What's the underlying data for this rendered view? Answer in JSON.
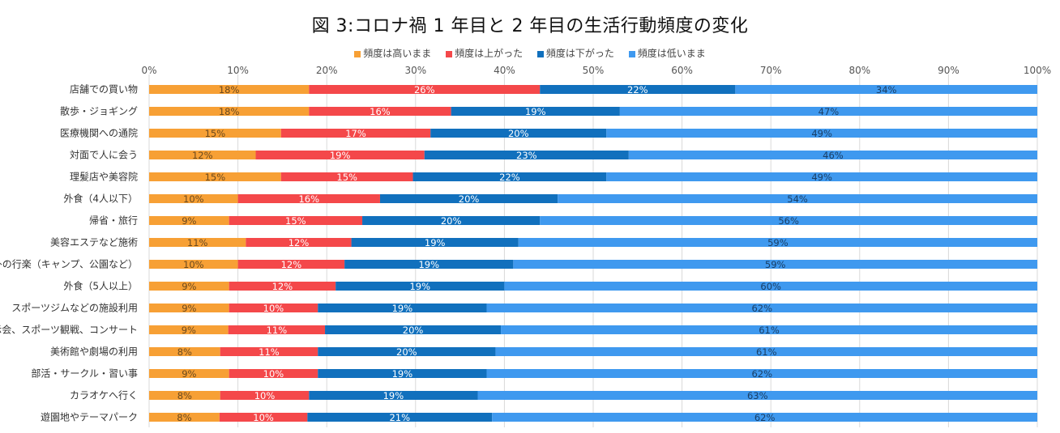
{
  "chart_data": {
    "type": "bar",
    "orientation": "horizontal-stacked-100",
    "title": "図 3:コロナ禍 1 年目と 2 年目の生活行動頻度の変化",
    "xlabel": "",
    "ylabel": "",
    "xlim": [
      0,
      100
    ],
    "x_ticks": [
      "0%",
      "10%",
      "20%",
      "30%",
      "40%",
      "50%",
      "60%",
      "70%",
      "80%",
      "90%",
      "100%"
    ],
    "grid": true,
    "legend_position": "top",
    "categories": [
      "店舗での買い物",
      "散歩・ジョギング",
      "医療機関への通院",
      "対面で人に会う",
      "理髪店や美容院",
      "外食（4人以下）",
      "帰省・旅行",
      "美容エステなど施術",
      "野外の行楽（キャンプ、公園など）",
      "外食（5人以上）",
      "スポーツジムなどの施設利用",
      "展示会、スポーツ観戦、コンサート",
      "美術館や劇場の利用",
      "部活・サークル・習い事",
      "カラオケへ行く",
      "遊園地やテーマパーク"
    ],
    "series": [
      {
        "name": "頻度は高いまま",
        "color": "#f7a035",
        "values": [
          18,
          18,
          15,
          12,
          15,
          10,
          9,
          11,
          10,
          9,
          9,
          9,
          8,
          9,
          8,
          8
        ],
        "value_labels": [
          "18%",
          "18%",
          "15%",
          "12%",
          "15%",
          "10%",
          "9%",
          "11%",
          "10%",
          "9%",
          "9%",
          "9%",
          "8%",
          "9%",
          "8%",
          "8%"
        ]
      },
      {
        "name": "頻度は上がった",
        "color": "#f4484a",
        "values": [
          26,
          16,
          17,
          19,
          15,
          16,
          15,
          12,
          12,
          12,
          10,
          11,
          11,
          10,
          10,
          10
        ],
        "value_labels": [
          "26%",
          "16%",
          "17%",
          "19%",
          "15%",
          "16%",
          "15%",
          "12%",
          "12%",
          "12%",
          "10%",
          "11%",
          "11%",
          "10%",
          "10%",
          "10%"
        ]
      },
      {
        "name": "頻度は下がった",
        "color": "#1170bd",
        "values": [
          22,
          19,
          20,
          23,
          22,
          20,
          20,
          19,
          19,
          19,
          19,
          20,
          20,
          19,
          19,
          21
        ],
        "value_labels": [
          "22%",
          "19%",
          "20%",
          "23%",
          "22%",
          "20%",
          "20%",
          "19%",
          "19%",
          "19%",
          "19%",
          "20%",
          "20%",
          "19%",
          "19%",
          "21%"
        ]
      },
      {
        "name": "頻度は低いまま",
        "color": "#3f99ef",
        "values": [
          34,
          47,
          49,
          46,
          49,
          54,
          56,
          59,
          59,
          60,
          62,
          61,
          61,
          62,
          63,
          62
        ],
        "value_labels": [
          "34%",
          "47%",
          "49%",
          "46%",
          "49%",
          "54%",
          "56%",
          "59%",
          "59%",
          "60%",
          "62%",
          "61%",
          "61%",
          "62%",
          "63%",
          "62%"
        ]
      }
    ]
  }
}
